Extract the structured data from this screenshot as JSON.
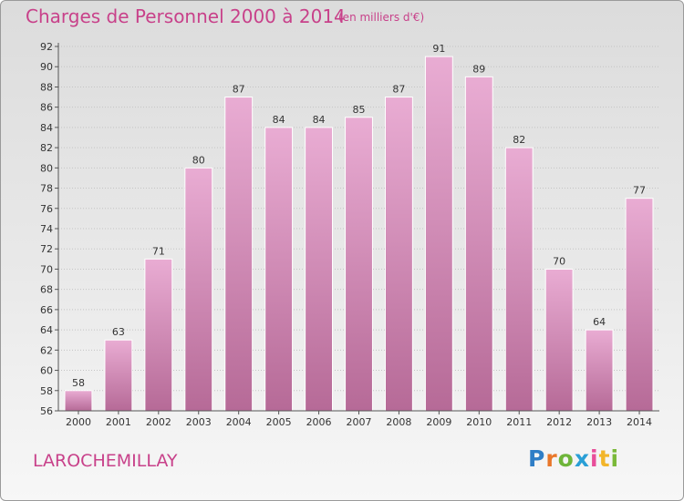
{
  "chart_data": {
    "type": "bar",
    "title": "Charges de Personnel 2000 à 2014",
    "subtitle": "(en milliers d'€)",
    "categories": [
      "2000",
      "2001",
      "2002",
      "2003",
      "2004",
      "2005",
      "2006",
      "2007",
      "2008",
      "2009",
      "2010",
      "2011",
      "2012",
      "2013",
      "2014"
    ],
    "values": [
      58,
      63,
      71,
      80,
      87,
      84,
      84,
      85,
      87,
      91,
      89,
      82,
      70,
      64,
      77
    ],
    "ylim": [
      56,
      92
    ],
    "yticks": [
      56,
      58,
      60,
      62,
      64,
      66,
      68,
      70,
      72,
      74,
      76,
      78,
      80,
      82,
      84,
      86,
      88,
      90,
      92
    ],
    "xlabel": "",
    "ylabel": "",
    "grid": true,
    "bar_color": "#d48fbb"
  },
  "municipality": "LAROCHEMILLAY",
  "logo": {
    "letters": [
      "P",
      "r",
      "o",
      "x",
      "i",
      "t",
      "i"
    ]
  }
}
